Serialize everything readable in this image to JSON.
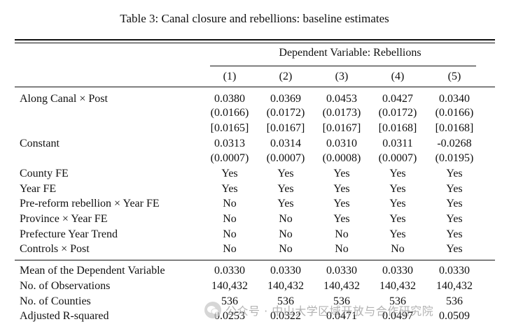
{
  "caption": "Table 3: Canal closure and rebellions: baseline estimates",
  "header": {
    "dependent_variable": "Dependent Variable: Rebellions",
    "columns": [
      "(1)",
      "(2)",
      "(3)",
      "(4)",
      "(5)"
    ]
  },
  "rows": [
    {
      "label": "Along Canal × Post",
      "values": [
        "0.0380",
        "0.0369",
        "0.0453",
        "0.0427",
        "0.0340"
      ]
    },
    {
      "label": "",
      "values": [
        "(0.0166)",
        "(0.0172)",
        "(0.0173)",
        "(0.0172)",
        "(0.0166)"
      ]
    },
    {
      "label": "",
      "values": [
        "[0.0165]",
        "[0.0167]",
        "[0.0167]",
        "[0.0168]",
        "[0.0168]"
      ]
    },
    {
      "label": "Constant",
      "values": [
        "0.0313",
        "0.0314",
        "0.0310",
        "0.0311",
        "-0.0268"
      ]
    },
    {
      "label": "",
      "values": [
        "(0.0007)",
        "(0.0007)",
        "(0.0008)",
        "(0.0007)",
        "(0.0195)"
      ]
    },
    {
      "label": "County FE",
      "values": [
        "Yes",
        "Yes",
        "Yes",
        "Yes",
        "Yes"
      ]
    },
    {
      "label": "Year FE",
      "values": [
        "Yes",
        "Yes",
        "Yes",
        "Yes",
        "Yes"
      ]
    },
    {
      "label": "Pre-reform rebellion × Year FE",
      "values": [
        "No",
        "Yes",
        "Yes",
        "Yes",
        "Yes"
      ]
    },
    {
      "label": "Province × Year FE",
      "values": [
        "No",
        "No",
        "Yes",
        "Yes",
        "Yes"
      ]
    },
    {
      "label": "Prefecture Year Trend",
      "values": [
        "No",
        "No",
        "No",
        "Yes",
        "Yes"
      ]
    },
    {
      "label": "Controls × Post",
      "values": [
        "No",
        "No",
        "No",
        "No",
        "Yes"
      ]
    },
    {
      "label": "Mean of the Dependent Variable",
      "values": [
        "0.0330",
        "0.0330",
        "0.0330",
        "0.0330",
        "0.0330"
      ]
    },
    {
      "label": "No. of Observations",
      "values": [
        "140,432",
        "140,432",
        "140,432",
        "140,432",
        "140,432"
      ]
    },
    {
      "label": "No. of Counties",
      "values": [
        "536",
        "536",
        "536",
        "536",
        "536"
      ]
    },
    {
      "label": "Adjusted R-squared",
      "values": [
        "0.0253",
        "0.0322",
        "0.0471",
        "0.0497",
        "0.0509"
      ]
    }
  ],
  "watermark": {
    "icon": "wechat-icon",
    "text": "公众号 · 中山大学区域开放与合作研究院"
  }
}
